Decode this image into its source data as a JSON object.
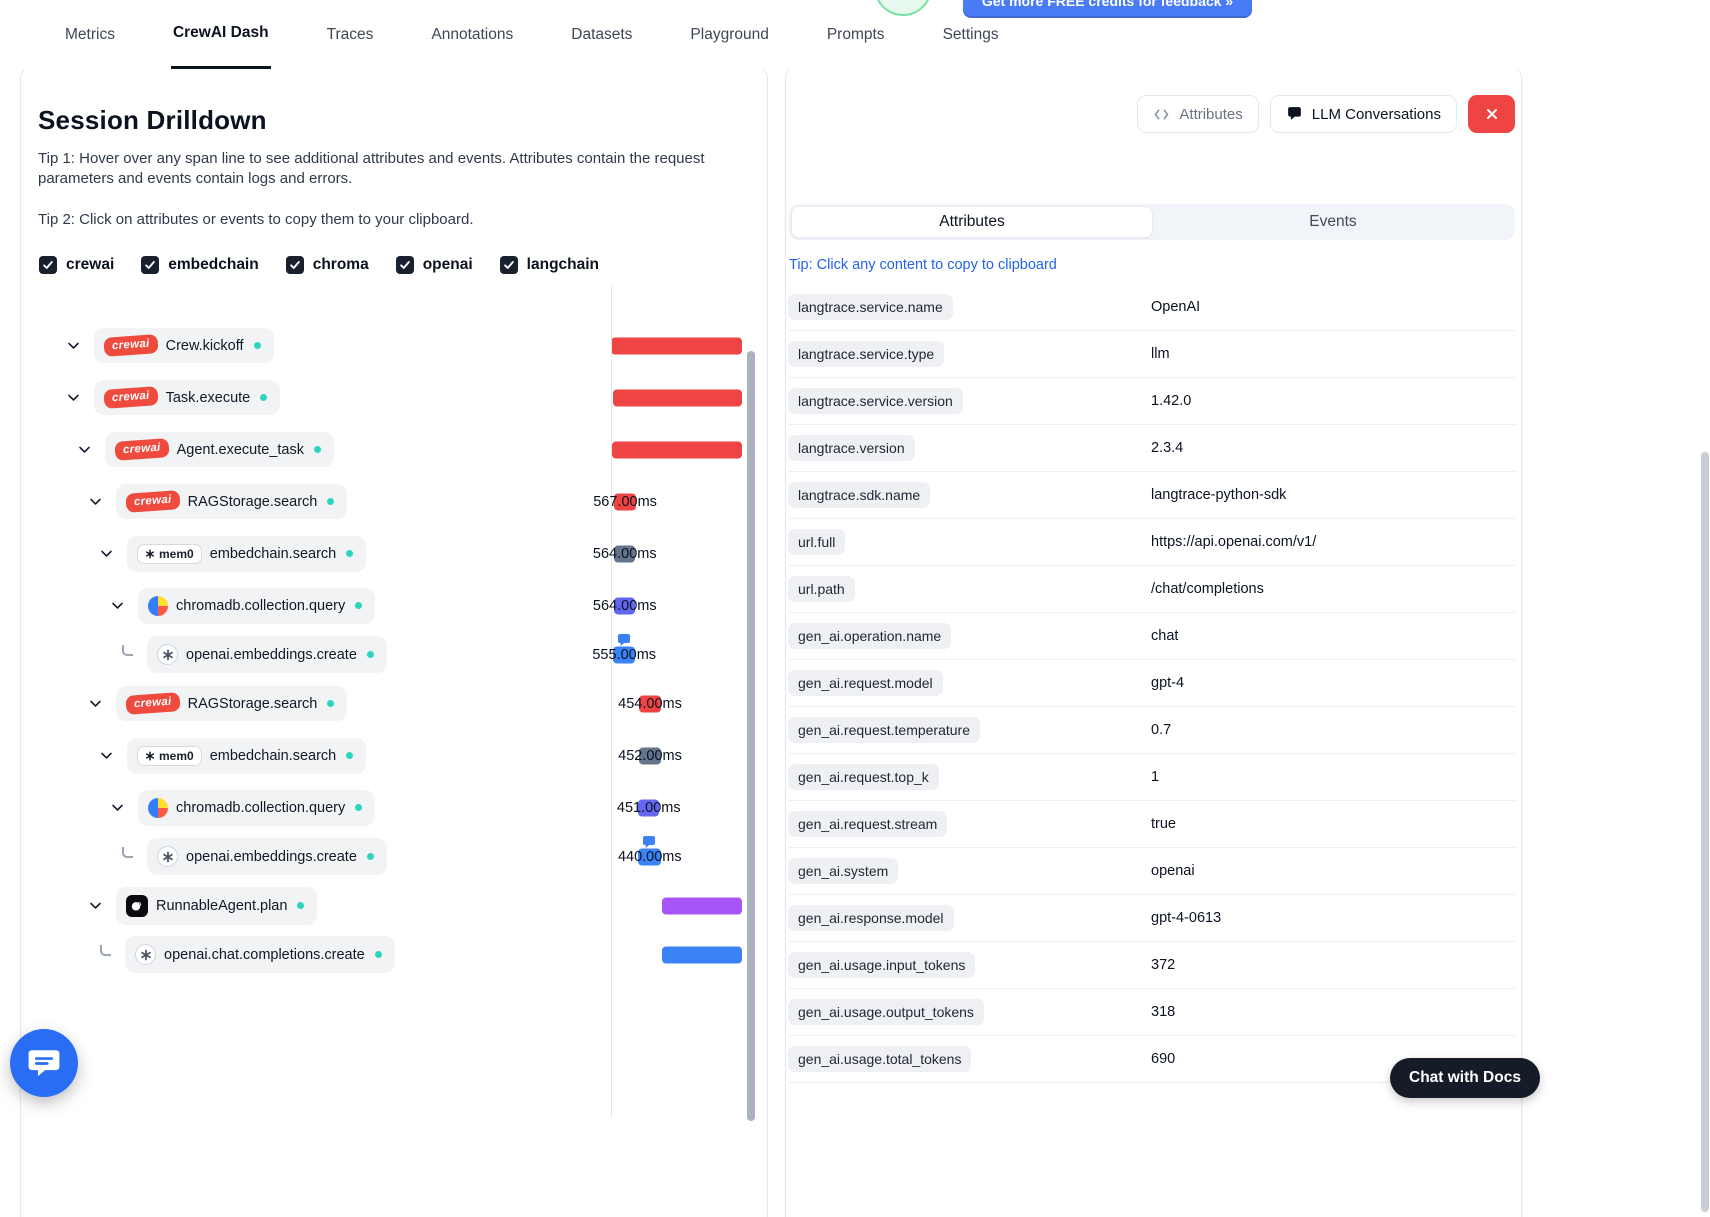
{
  "nav": {
    "tabs": [
      {
        "label": "Metrics",
        "active": false
      },
      {
        "label": "CrewAI Dash",
        "active": true
      },
      {
        "label": "Traces",
        "active": false
      },
      {
        "label": "Annotations",
        "active": false
      },
      {
        "label": "Datasets",
        "active": false
      },
      {
        "label": "Playground",
        "active": false
      },
      {
        "label": "Prompts",
        "active": false
      },
      {
        "label": "Settings",
        "active": false
      }
    ],
    "credits_button_label": "Get more FREE credits for feedback  »"
  },
  "drilldown": {
    "title": "Session Drilldown",
    "tip1": "Tip 1: Hover over any span line to see additional attributes and events. Attributes contain the request parameters and events contain logs and errors.",
    "tip2": "Tip 2: Click on attributes or events to copy them to your clipboard.",
    "filters": [
      {
        "label": "crewai",
        "checked": true
      },
      {
        "label": "embedchain",
        "checked": true
      },
      {
        "label": "chroma",
        "checked": true
      },
      {
        "label": "openai",
        "checked": true
      },
      {
        "label": "langchain",
        "checked": true
      }
    ],
    "spans": [
      {
        "label": "Crew.kickoff",
        "icon": "crewai",
        "level": 0,
        "connector": "chevron",
        "duration": "",
        "bubble": false,
        "bar": {
          "color": "#ef4444",
          "left_pct": 0,
          "width_pct": 90.3
        }
      },
      {
        "label": "Task.execute",
        "icon": "crewai",
        "level": 0,
        "connector": "chevron",
        "duration": "",
        "bubble": false,
        "bar": {
          "color": "#ef4444",
          "left_pct": 1.4,
          "width_pct": 88.9
        }
      },
      {
        "label": "Agent.execute_task",
        "icon": "crewai",
        "level": 1,
        "connector": "chevron",
        "duration": "",
        "bubble": false,
        "bar": {
          "color": "#ef4444",
          "left_pct": 0.7,
          "width_pct": 89.6
        }
      },
      {
        "label": "RAGStorage.search",
        "icon": "crewai",
        "level": 2,
        "connector": "chevron",
        "duration": "567.00ms",
        "bubble": false,
        "bar": {
          "color": "#ef4444",
          "left_pct": 2.1,
          "width_pct": 15.2
        }
      },
      {
        "label": "embedchain.search",
        "icon": "mem0",
        "level": 3,
        "connector": "chevron",
        "duration": "564.00ms",
        "bubble": false,
        "bar": {
          "color": "#64748b",
          "left_pct": 2.1,
          "width_pct": 14.8
        }
      },
      {
        "label": "chromadb.collection.query",
        "icon": "chroma",
        "level": 4,
        "connector": "chevron",
        "duration": "564.00ms",
        "bubble": false,
        "bar": {
          "color": "#6366f1",
          "left_pct": 2.1,
          "width_pct": 14.8
        }
      },
      {
        "label": "openai.embeddings.create",
        "icon": "openai",
        "level": 5,
        "connector": "elbow",
        "duration": "555.00ms",
        "bubble": true,
        "bar": {
          "color": "#3b82f6",
          "left_pct": 1.5,
          "width_pct": 15.2
        }
      },
      {
        "label": "RAGStorage.search",
        "icon": "crewai",
        "level": 2,
        "connector": "chevron",
        "duration": "454.00ms",
        "bubble": false,
        "bar": {
          "color": "#ef4444",
          "left_pct": 19.3,
          "width_pct": 15.2
        }
      },
      {
        "label": "embedchain.search",
        "icon": "mem0",
        "level": 3,
        "connector": "chevron",
        "duration": "452.00ms",
        "bubble": false,
        "bar": {
          "color": "#64748b",
          "left_pct": 19.3,
          "width_pct": 15.2
        }
      },
      {
        "label": "chromadb.collection.query",
        "icon": "chroma",
        "level": 4,
        "connector": "chevron",
        "duration": "451.00ms",
        "bubble": false,
        "bar": {
          "color": "#6366f1",
          "left_pct": 18.8,
          "width_pct": 14.5
        }
      },
      {
        "label": "openai.embeddings.create",
        "icon": "openai",
        "level": 5,
        "connector": "elbow",
        "duration": "440.00ms",
        "bubble": true,
        "bar": {
          "color": "#3b82f6",
          "left_pct": 18.8,
          "width_pct": 15.9
        }
      },
      {
        "label": "RunnableAgent.plan",
        "icon": "langchain",
        "level": 2,
        "connector": "chevron",
        "duration": "",
        "bubble": false,
        "bar": {
          "color": "#a855f7",
          "left_pct": 35.2,
          "width_pct": 55.2
        }
      },
      {
        "label": "openai.chat.completions.create",
        "icon": "openai",
        "level": 3,
        "connector": "elbow",
        "duration": "",
        "bubble": false,
        "bar": {
          "color": "#3b82f6",
          "left_pct": 35.2,
          "width_pct": 55.2
        }
      }
    ]
  },
  "detail_panel": {
    "attributes_button": "Attributes",
    "llm_conversations_button": "LLM Conversations",
    "tabs": [
      {
        "label": "Attributes",
        "active": true
      },
      {
        "label": "Events",
        "active": false
      }
    ],
    "tip": "Tip: Click any content to copy to clipboard",
    "attributes": [
      {
        "key": "langtrace.service.name",
        "value": "OpenAI"
      },
      {
        "key": "langtrace.service.type",
        "value": "llm"
      },
      {
        "key": "langtrace.service.version",
        "value": "1.42.0"
      },
      {
        "key": "langtrace.version",
        "value": "2.3.4"
      },
      {
        "key": "langtrace.sdk.name",
        "value": "langtrace-python-sdk"
      },
      {
        "key": "url.full",
        "value": "https://api.openai.com/v1/"
      },
      {
        "key": "url.path",
        "value": "/chat/completions"
      },
      {
        "key": "gen_ai.operation.name",
        "value": "chat"
      },
      {
        "key": "gen_ai.request.model",
        "value": "gpt-4"
      },
      {
        "key": "gen_ai.request.temperature",
        "value": "0.7"
      },
      {
        "key": "gen_ai.request.top_k",
        "value": "1"
      },
      {
        "key": "gen_ai.request.stream",
        "value": "true"
      },
      {
        "key": "gen_ai.system",
        "value": "openai"
      },
      {
        "key": "gen_ai.response.model",
        "value": "gpt-4-0613"
      },
      {
        "key": "gen_ai.usage.input_tokens",
        "value": "372"
      },
      {
        "key": "gen_ai.usage.output_tokens",
        "value": "318"
      },
      {
        "key": "gen_ai.usage.total_tokens",
        "value": "690"
      }
    ]
  },
  "footer": {
    "chat_with_docs_label": "Chat with Docs"
  },
  "colors": {
    "close_button": "#ef4444",
    "link": "#2563eb",
    "status_dot": "#2dd4bf",
    "crewai_badge": "#ee4a3d",
    "credits_button": "#4a7bf7",
    "chat_launcher": "#2a6df5"
  }
}
